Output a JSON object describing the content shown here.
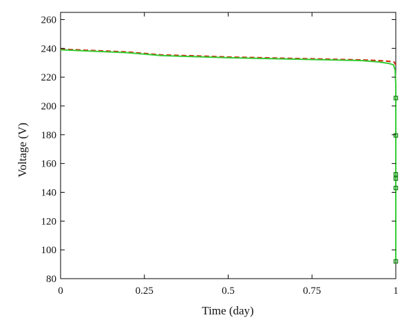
{
  "chart_data": {
    "type": "line",
    "title": "",
    "xlabel": "Time (day)",
    "ylabel": "Voltage (V)",
    "xlim": [
      0,
      1
    ],
    "ylim": [
      80,
      265
    ],
    "x_ticks": [
      0,
      0.25,
      0.5,
      0.75,
      1
    ],
    "x_tick_labels": [
      "0",
      "0.25",
      "0.5",
      "0.75",
      "1"
    ],
    "y_ticks": [
      80,
      100,
      120,
      140,
      160,
      180,
      200,
      220,
      240,
      260
    ],
    "y_tick_labels": [
      "80",
      "100",
      "120",
      "140",
      "160",
      "180",
      "200",
      "220",
      "240",
      "260"
    ],
    "grid": false,
    "legend": "none",
    "series": [
      {
        "color": "#cc2200",
        "style": "dashed",
        "x": [
          0,
          0.1,
          0.2,
          0.3,
          0.4,
          0.5,
          0.6,
          0.7,
          0.8,
          0.9,
          0.95,
          0.98,
          0.995,
          1.0
        ],
        "y": [
          239.5,
          238.5,
          237.5,
          235.5,
          234.8,
          234.0,
          233.5,
          233.0,
          232.5,
          232.0,
          231.5,
          231.0,
          230.5,
          228.5
        ]
      },
      {
        "color": "#33cc33",
        "style": "solid",
        "x": [
          0,
          0.1,
          0.2,
          0.3,
          0.4,
          0.5,
          0.6,
          0.7,
          0.8,
          0.9,
          0.95,
          0.98,
          0.993,
          0.998,
          1.0,
          1.0
        ],
        "y": [
          239.0,
          238.0,
          237.0,
          235.0,
          234.2,
          233.5,
          233.0,
          232.5,
          232.0,
          231.5,
          230.5,
          229.5,
          228.5,
          225.0,
          215.0,
          92.0
        ]
      }
    ],
    "markers": [
      {
        "x": 1.0,
        "y": 205.5,
        "color": "#228822"
      },
      {
        "x": 1.0,
        "y": 179.5,
        "color": "#228822"
      },
      {
        "x": 1.0,
        "y": 152.5,
        "color": "#228822"
      },
      {
        "x": 1.0,
        "y": 149.5,
        "color": "#228822"
      },
      {
        "x": 1.0,
        "y": 143.0,
        "color": "#228822"
      },
      {
        "x": 1.0,
        "y": 92.0,
        "color": "#228822"
      }
    ]
  }
}
